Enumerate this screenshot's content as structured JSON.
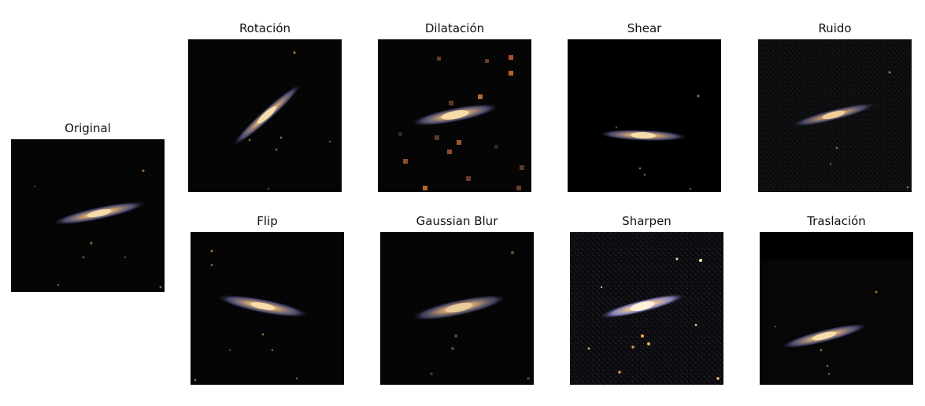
{
  "figure": {
    "panels": [
      {
        "id": "original",
        "title": "Original",
        "variant": "original"
      },
      {
        "id": "rotacion",
        "title": "Rotación",
        "variant": "rotation"
      },
      {
        "id": "dilatacion",
        "title": "Dilatación",
        "variant": "dilation"
      },
      {
        "id": "shear",
        "title": "Shear",
        "variant": "shear"
      },
      {
        "id": "ruido",
        "title": "Ruido",
        "variant": "noise"
      },
      {
        "id": "flip",
        "title": "Flip",
        "variant": "flip"
      },
      {
        "id": "gaussian-blur",
        "title": "Gaussian Blur",
        "variant": "blur"
      },
      {
        "id": "sharpen",
        "title": "Sharpen",
        "variant": "sharpen"
      },
      {
        "id": "traslacion",
        "title": "Traslación",
        "variant": "translation"
      }
    ]
  },
  "colors": {
    "background": "#ffffff",
    "image_background": "#050505",
    "galaxy_core": "#f3c989",
    "galaxy_disk": "#8c7fb4",
    "star_warm": "#c98a3b"
  }
}
